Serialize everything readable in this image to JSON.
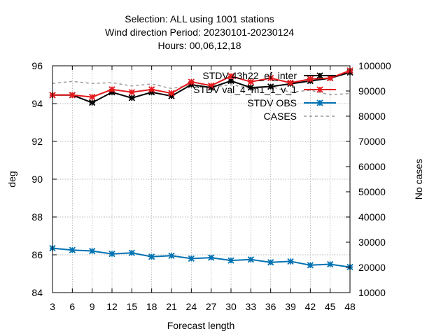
{
  "chart_data": {
    "type": "line",
    "title_lines": [
      "Selection: ALL using  1001 stations",
      "Wind direction   Period: 20230101-20230124",
      "Hours:  00,06,12,18"
    ],
    "xlabel": "Forecast length",
    "ylabel": "deg",
    "y2label": "No cases",
    "x": [
      3,
      6,
      9,
      12,
      15,
      18,
      21,
      24,
      27,
      30,
      33,
      36,
      39,
      42,
      45,
      48
    ],
    "xlim": [
      3,
      48
    ],
    "ylim": [
      84,
      96
    ],
    "y2lim": [
      10000,
      100000
    ],
    "yticks": [
      84,
      86,
      88,
      90,
      92,
      94,
      96
    ],
    "y2ticks": [
      10000,
      20000,
      30000,
      40000,
      50000,
      60000,
      70000,
      80000,
      90000,
      100000
    ],
    "grid": true,
    "legend_position": "top-right",
    "series": [
      {
        "name": "STDV 43h22_ef_inter",
        "color": "#000000",
        "axis": "y",
        "style": "line-points",
        "values": [
          94.45,
          94.45,
          94.05,
          94.6,
          94.3,
          94.6,
          94.4,
          95.0,
          94.85,
          95.2,
          94.85,
          94.9,
          95.05,
          95.2,
          95.35,
          95.65
        ]
      },
      {
        "name": "STDV val_4_m1_1_v_1",
        "color": "#e41a1c",
        "axis": "y",
        "style": "line-points",
        "values": [
          94.45,
          94.45,
          94.35,
          94.75,
          94.6,
          94.75,
          94.55,
          95.15,
          94.95,
          95.45,
          95.15,
          95.35,
          95.1,
          95.3,
          95.35,
          95.75
        ]
      },
      {
        "name": "STDV OBS",
        "color": "#0072b2",
        "axis": "y",
        "style": "line-points",
        "values": [
          86.35,
          86.25,
          86.2,
          86.05,
          86.1,
          85.9,
          85.95,
          85.8,
          85.85,
          85.7,
          85.75,
          85.6,
          85.65,
          85.45,
          85.5,
          85.35
        ]
      },
      {
        "name": "CASES",
        "color": "#999999",
        "axis": "y2",
        "style": "dashed",
        "values": [
          93000,
          93800,
          93000,
          93300,
          92000,
          92800,
          91000,
          92300,
          91500,
          92500,
          91000,
          91800,
          89500,
          90300,
          88500,
          89000
        ]
      }
    ]
  }
}
